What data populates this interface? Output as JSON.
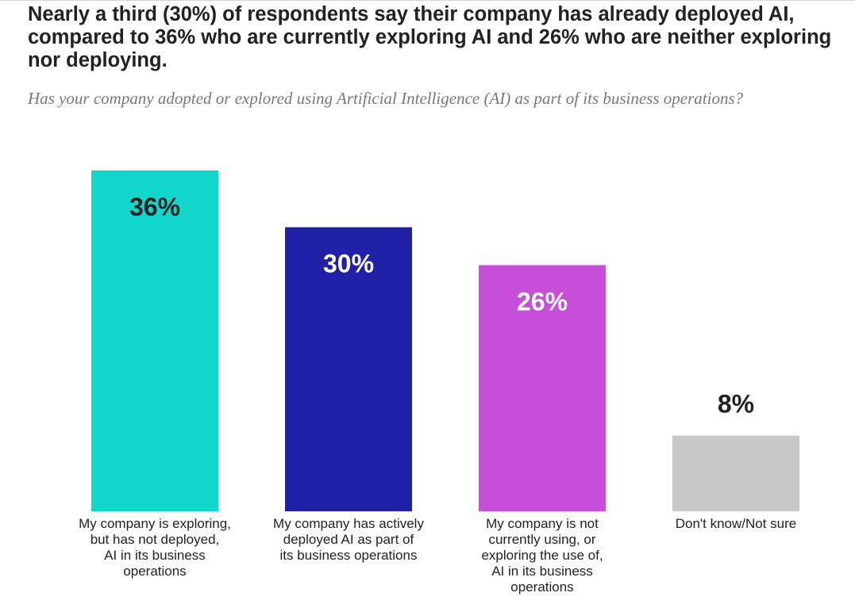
{
  "chart_data": {
    "type": "bar",
    "title": "Nearly a third (30%) of respondents say their company has already deployed AI, compared to 36% who are currently exploring AI and 26% who are neither exploring nor deploying.",
    "subtitle": "Has your company adopted or explored using Artificial Intelligence (AI) as part of its business operations?",
    "categories": [
      "My company is exploring, but has not deployed, AI in its business operations",
      "My company has actively deployed AI as part of its business operations",
      "My company is not currently using, or exploring the use of, AI in its business operations",
      "Don't know/Not sure"
    ],
    "values": [
      36,
      30,
      26,
      8
    ],
    "value_labels": [
      "36%",
      "30%",
      "26%",
      "8%"
    ],
    "colors": [
      "#11d6cb",
      "#2020a6",
      "#c74ed8",
      "#c8c8c8"
    ],
    "value_label_colors": [
      "#222222",
      "#ffffff",
      "#ffffff",
      "#222222"
    ],
    "value_label_positions": [
      "inside",
      "inside",
      "inside",
      "above"
    ],
    "ylim": [
      0,
      36
    ],
    "grid": false,
    "legend": "none"
  }
}
